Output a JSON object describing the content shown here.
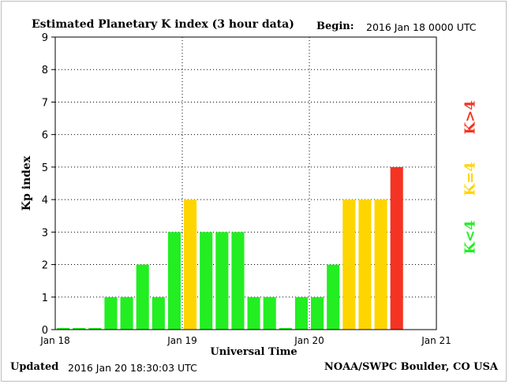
{
  "header": {
    "title": "Estimated Planetary K index (3 hour data)",
    "begin_label": "Begin:",
    "begin_value": "2016 Jan 18 0000 UTC"
  },
  "footer": {
    "updated_label": "Updated",
    "updated_value": "2016 Jan 20 18:30:03 UTC",
    "source": "NOAA/SWPC Boulder, CO USA"
  },
  "legend": {
    "items": [
      {
        "label": "K<4",
        "color": "#22ee22"
      },
      {
        "label": "K=4",
        "color": "#ffd500"
      },
      {
        "label": "K>4",
        "color": "#f43323"
      }
    ]
  },
  "chart_data": {
    "type": "bar",
    "title": "Estimated Planetary K index (3 hour data)",
    "xlabel": "Universal Time",
    "ylabel": "Kp index",
    "ylim": [
      0,
      9
    ],
    "yticks": [
      0,
      1,
      2,
      3,
      4,
      5,
      6,
      7,
      8,
      9
    ],
    "xtick_labels": [
      "Jan 18",
      "Jan 19",
      "Jan 20",
      "Jan 21"
    ],
    "slots_per_day": 8,
    "total_slots": 24,
    "grid": "dotted",
    "values": [
      0,
      0,
      0,
      1,
      1,
      2,
      1,
      3,
      4,
      3,
      3,
      3,
      1,
      1,
      0,
      1,
      1,
      2,
      4,
      4,
      4,
      5
    ],
    "colors": {
      "low": "#22ee22",
      "mid": "#ffd500",
      "high": "#f43323"
    }
  }
}
